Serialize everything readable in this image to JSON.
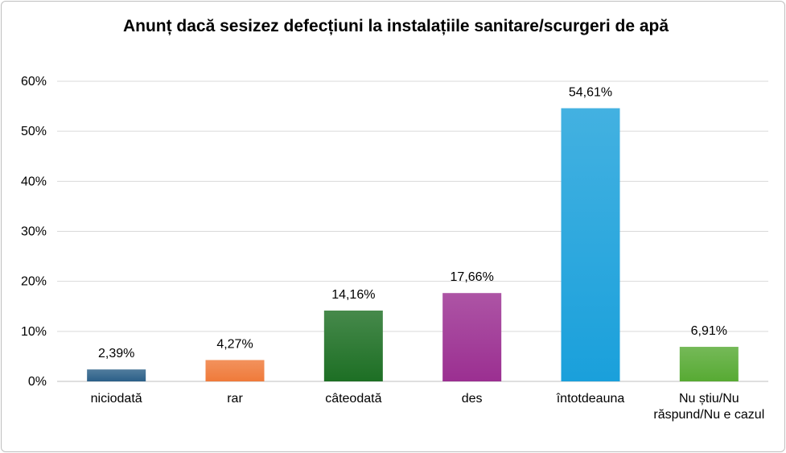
{
  "chart_data": {
    "type": "bar",
    "title": "Anunț dacă sesizez defecțiuni la instalațiile sanitare/scurgeri de apă",
    "categories": [
      "niciodată",
      "rar",
      "câteodată",
      "des",
      "întotdeauna",
      "Nu știu/Nu răspund/Nu e cazul"
    ],
    "values": [
      2.39,
      4.27,
      14.16,
      17.66,
      54.61,
      6.91
    ],
    "data_labels": [
      "2,39%",
      "4,27%",
      "14,16%",
      "17,66%",
      "54,61%",
      "6,91%"
    ],
    "colors": [
      "#2b5f88",
      "#ef7a3a",
      "#1d6f24",
      "#9b2f91",
      "#1aa0db",
      "#57aa33"
    ],
    "ylim": [
      0,
      60
    ],
    "yticks": [
      0,
      10,
      20,
      30,
      40,
      50,
      60
    ],
    "ytick_labels": [
      "0%",
      "10%",
      "20%",
      "30%",
      "40%",
      "50%",
      "60%"
    ],
    "grid": true,
    "legend": "none",
    "xlabel": "",
    "ylabel": ""
  }
}
